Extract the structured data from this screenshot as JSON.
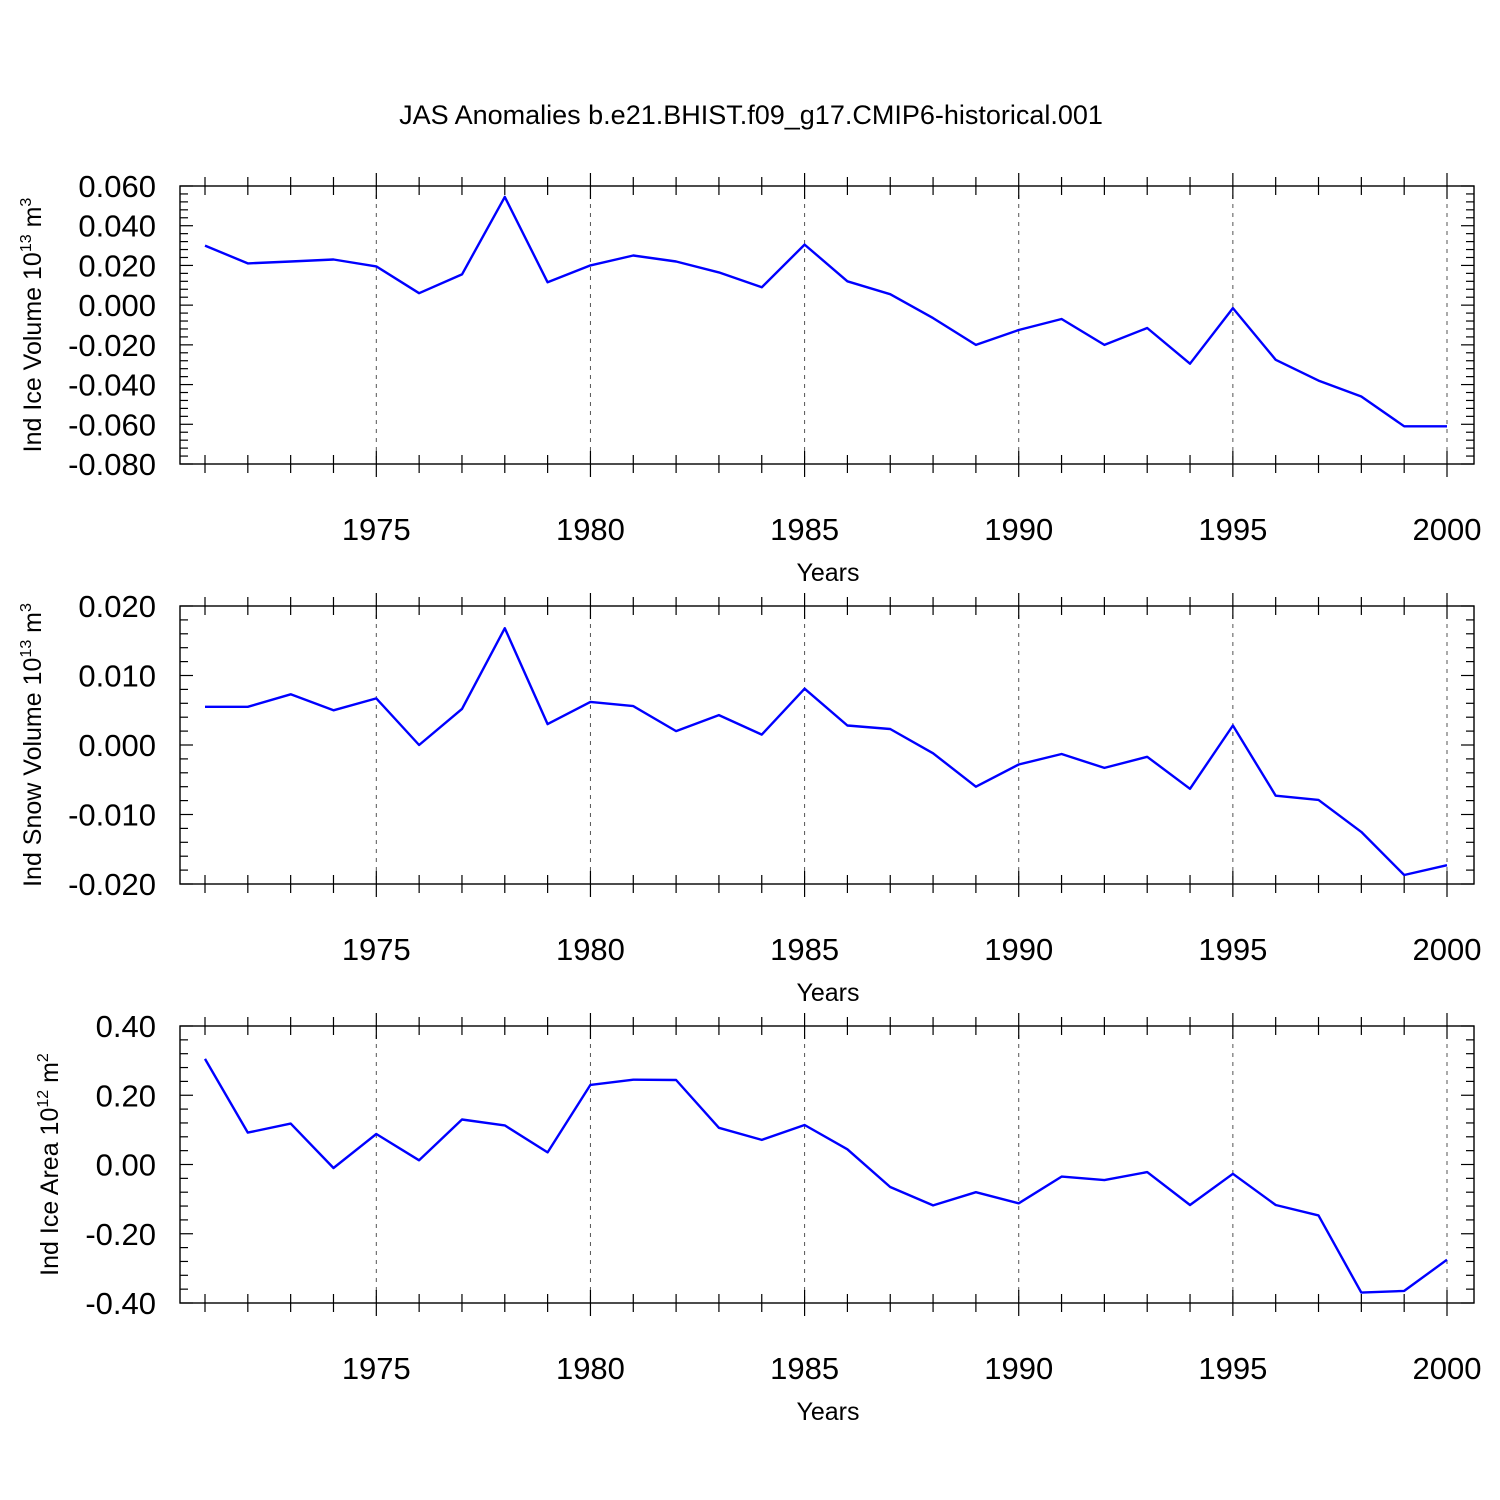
{
  "title": "JAS Anomalies b.e21.BHIST.f09_g17.CMIP6-historical.001",
  "colors": {
    "series": "#0000ff",
    "axis": "#000000",
    "grid": "#555555"
  },
  "chart_data": [
    {
      "type": "line",
      "ylabel_main": "Ind Ice Volume 10",
      "ylabel_sup1": "13",
      "ylabel_unit": " m",
      "ylabel_sup2": "3",
      "xlabel": "Years",
      "xlim": [
        1971,
        2000
      ],
      "ylim": [
        -0.08,
        0.06
      ],
      "yticks": [
        0.06,
        0.04,
        0.02,
        0.0,
        -0.02,
        -0.04,
        -0.06,
        -0.08
      ],
      "ytick_labels": [
        "0.060",
        "0.040",
        "0.020",
        "0.000",
        "-0.020",
        "-0.040",
        "-0.060",
        "-0.080"
      ],
      "xticks": [
        1975,
        1980,
        1985,
        1990,
        1995,
        2000
      ],
      "xtick_labels": [
        "1975",
        "1980",
        "1985",
        "1990",
        "1995",
        "2000"
      ],
      "grid": "vertical dashed at major x ticks",
      "x": [
        1971,
        1972,
        1973,
        1974,
        1975,
        1976,
        1977,
        1978,
        1979,
        1980,
        1981,
        1982,
        1983,
        1984,
        1985,
        1986,
        1987,
        1988,
        1989,
        1990,
        1991,
        1992,
        1993,
        1994,
        1995,
        1996,
        1997,
        1998,
        1999,
        2000
      ],
      "values": [
        0.03,
        0.021,
        0.022,
        0.023,
        0.0195,
        0.006,
        0.0155,
        0.0545,
        0.0115,
        0.02,
        0.025,
        0.022,
        0.0165,
        0.009,
        0.0305,
        0.012,
        0.0055,
        -0.0065,
        -0.02,
        -0.0125,
        -0.007,
        -0.02,
        -0.0115,
        -0.0295,
        -0.0015,
        -0.0275,
        -0.038,
        -0.046,
        -0.061,
        -0.061
      ]
    },
    {
      "type": "line",
      "ylabel_main": "Ind Snow Volume 10",
      "ylabel_sup1": "13",
      "ylabel_unit": " m",
      "ylabel_sup2": "3",
      "xlabel": "Years",
      "xlim": [
        1971,
        2000
      ],
      "ylim": [
        -0.02,
        0.02
      ],
      "yticks": [
        0.02,
        0.01,
        0.0,
        -0.01,
        -0.02
      ],
      "ytick_labels": [
        "0.020",
        "0.010",
        "0.000",
        "-0.010",
        "-0.020"
      ],
      "xticks": [
        1975,
        1980,
        1985,
        1990,
        1995,
        2000
      ],
      "xtick_labels": [
        "1975",
        "1980",
        "1985",
        "1990",
        "1995",
        "2000"
      ],
      "grid": "vertical dashed at major x ticks",
      "x": [
        1971,
        1972,
        1973,
        1974,
        1975,
        1976,
        1977,
        1978,
        1979,
        1980,
        1981,
        1982,
        1983,
        1984,
        1985,
        1986,
        1987,
        1988,
        1989,
        1990,
        1991,
        1992,
        1993,
        1994,
        1995,
        1996,
        1997,
        1998,
        1999,
        2000
      ],
      "values": [
        0.0055,
        0.0055,
        0.0073,
        0.005,
        0.0067,
        0.0,
        0.0052,
        0.0168,
        0.003,
        0.0062,
        0.0056,
        0.002,
        0.0043,
        0.0015,
        0.0081,
        0.0028,
        0.0023,
        -0.0012,
        -0.006,
        -0.0028,
        -0.0013,
        -0.0033,
        -0.0017,
        -0.0063,
        0.0028,
        -0.0073,
        -0.0079,
        -0.0125,
        -0.0187,
        -0.0173
      ]
    },
    {
      "type": "line",
      "ylabel_main": "Ind Ice Area 10",
      "ylabel_sup1": "12",
      "ylabel_unit": " m",
      "ylabel_sup2": "2",
      "xlabel": "Years",
      "xlim": [
        1971,
        2000
      ],
      "ylim": [
        -0.4,
        0.4
      ],
      "yticks": [
        0.4,
        0.2,
        0.0,
        -0.2,
        -0.4
      ],
      "ytick_labels": [
        "0.40",
        "0.20",
        "0.00",
        "-0.20",
        "-0.40"
      ],
      "xticks": [
        1975,
        1980,
        1985,
        1990,
        1995,
        2000
      ],
      "xtick_labels": [
        "1975",
        "1980",
        "1985",
        "1990",
        "1995",
        "2000"
      ],
      "grid": "vertical dashed at major x ticks",
      "x": [
        1971,
        1972,
        1973,
        1974,
        1975,
        1976,
        1977,
        1978,
        1979,
        1980,
        1981,
        1982,
        1983,
        1984,
        1985,
        1986,
        1987,
        1988,
        1989,
        1990,
        1991,
        1992,
        1993,
        1994,
        1995,
        1996,
        1997,
        1998,
        1999,
        2000
      ],
      "values": [
        0.305,
        0.092,
        0.118,
        -0.01,
        0.088,
        0.012,
        0.13,
        0.113,
        0.035,
        0.23,
        0.245,
        0.244,
        0.106,
        0.071,
        0.114,
        0.044,
        -0.065,
        -0.118,
        -0.08,
        -0.112,
        -0.035,
        -0.045,
        -0.022,
        -0.117,
        -0.027,
        -0.117,
        -0.147,
        -0.37,
        -0.365,
        -0.275
      ]
    }
  ]
}
